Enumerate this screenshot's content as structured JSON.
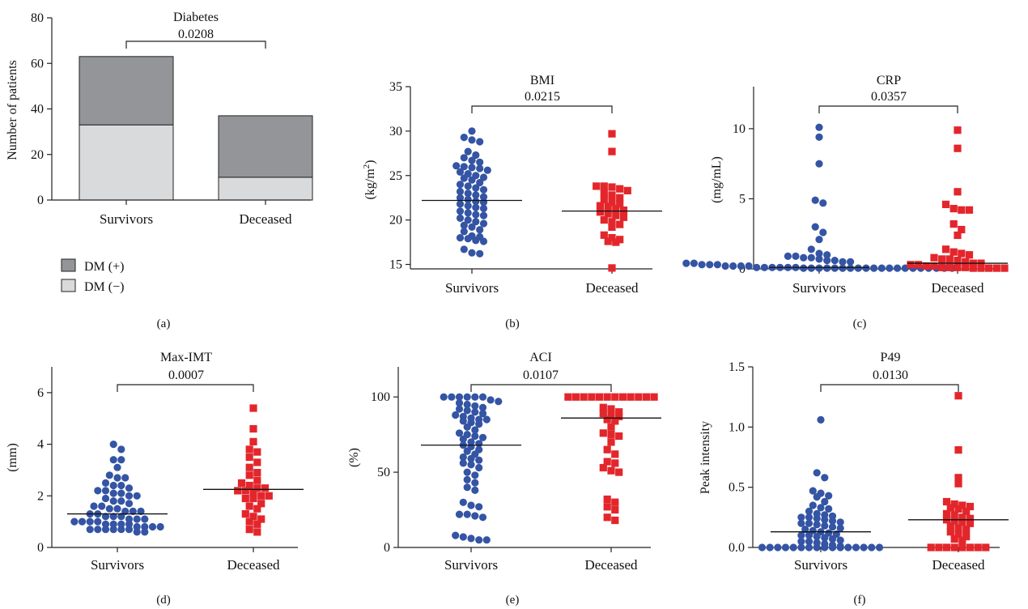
{
  "figure": {
    "colors": {
      "axis": "#222222",
      "survivors": "#3454a4",
      "deceased": "#e3262b",
      "dm_pos": "#939598",
      "dm_neg": "#d9dadb"
    }
  },
  "chart_data": [
    {
      "panel": "(a)",
      "type": "bar",
      "stacked": true,
      "title": "Diabetes",
      "pvalue": "0.0208",
      "ylabel": "Number of patients",
      "categories": [
        "Survivors",
        "Deceased"
      ],
      "series": [
        {
          "name": "DM (−)",
          "values": [
            33,
            10
          ],
          "color": "#d9dadb"
        },
        {
          "name": "DM (+)",
          "values": [
            30,
            27
          ],
          "color": "#939598"
        }
      ],
      "legend": [
        "DM (+)",
        "DM (−)"
      ],
      "ylim": [
        0,
        80
      ],
      "yticks": [
        0,
        20,
        40,
        60,
        80
      ],
      "legend_position": "bottom-left"
    },
    {
      "panel": "(b)",
      "type": "scatter",
      "title": "BMI",
      "pvalue": "0.0215",
      "ylabel": "(kg/m²)",
      "ylabel_main": "(kg/m",
      "ylabel_sup": "2",
      "ylabel_end": ")",
      "categories": [
        "Survivors",
        "Deceased"
      ],
      "ylim": [
        14.5,
        35
      ],
      "yticks": [
        15,
        20,
        25,
        30,
        35
      ],
      "medians": [
        22.2,
        21.0
      ],
      "series": [
        {
          "name": "Survivors",
          "values": [
            30.0,
            29.3,
            29.0,
            28.8,
            27.7,
            27.3,
            27.0,
            26.7,
            26.5,
            26.1,
            26.0,
            25.9,
            25.8,
            25.6,
            25.4,
            25.2,
            25.0,
            24.8,
            24.7,
            24.5,
            24.2,
            24.0,
            23.8,
            23.6,
            23.4,
            23.2,
            23.0,
            22.8,
            22.6,
            22.5,
            22.3,
            22.1,
            22.0,
            21.8,
            21.6,
            21.4,
            21.3,
            21.0,
            20.8,
            20.6,
            20.5,
            20.2,
            20.0,
            19.8,
            19.6,
            19.4,
            19.2,
            18.9,
            18.7,
            18.2,
            18.1,
            18.0,
            17.9,
            17.7,
            17.6,
            16.7,
            16.3,
            16.2
          ]
        },
        {
          "name": "Deceased",
          "values": [
            29.7,
            27.7,
            23.8,
            23.8,
            23.7,
            23.5,
            23.3,
            23.0,
            22.8,
            22.5,
            22.3,
            22.0,
            21.8,
            21.6,
            21.5,
            21.3,
            21.1,
            20.9,
            20.7,
            20.5,
            20.3,
            20.0,
            19.8,
            19.5,
            19.2,
            18.3,
            18.0,
            17.8,
            17.6,
            17.5,
            14.6
          ]
        }
      ]
    },
    {
      "panel": "(c)",
      "type": "scatter",
      "title": "CRP",
      "pvalue": "0.0357",
      "ylabel": "(mg/mL)",
      "categories": [
        "Survivors",
        "Deceased"
      ],
      "ylim": [
        0,
        13
      ],
      "yticks": [
        0,
        5,
        10
      ],
      "medians": [
        0.1,
        0.4
      ],
      "series": [
        {
          "name": "Survivors",
          "values": [
            10.1,
            9.4,
            7.5,
            4.9,
            4.7,
            3.0,
            2.6,
            2.1,
            1.4,
            1.1,
            1.0,
            0.9,
            0.9,
            0.8,
            0.8,
            0.7,
            0.6,
            0.6,
            0.5,
            0.5,
            0.4,
            0.4,
            0.3,
            0.3,
            0.3,
            0.2,
            0.2,
            0.2,
            0.2,
            0.1,
            0.1,
            0.1,
            0.1,
            0.1,
            0.1,
            0.05,
            0.05,
            0.05,
            0.05,
            0.05,
            0.05,
            0.05,
            0.05,
            0.05,
            0.05,
            0.05,
            0.05,
            0.05,
            0.05,
            0.05,
            0.05,
            0.05,
            0.05,
            0.05,
            0.05
          ]
        },
        {
          "name": "Deceased",
          "values": [
            9.9,
            8.6,
            5.5,
            4.6,
            4.3,
            4.2,
            4.2,
            3.2,
            2.8,
            2.4,
            1.4,
            1.2,
            1.1,
            1.0,
            0.8,
            0.7,
            0.7,
            0.6,
            0.5,
            0.4,
            0.4,
            0.3,
            0.3,
            0.2,
            0.2,
            0.1,
            0.1,
            0.1,
            0.1,
            0.05,
            0.05,
            0.05,
            0.05,
            0.05
          ]
        }
      ]
    },
    {
      "panel": "(d)",
      "type": "scatter",
      "title": "Max-IMT",
      "pvalue": "0.0007",
      "ylabel": "(mm)",
      "categories": [
        "Survivors",
        "Deceased"
      ],
      "ylim": [
        0,
        7
      ],
      "yticks": [
        0,
        2,
        4,
        6
      ],
      "medians": [
        1.3,
        2.25
      ],
      "series": [
        {
          "name": "Survivors",
          "values": [
            4.0,
            3.8,
            3.4,
            3.4,
            3.1,
            2.8,
            2.7,
            2.7,
            2.5,
            2.4,
            2.4,
            2.3,
            2.2,
            2.2,
            2.1,
            2.1,
            2.0,
            2.0,
            1.9,
            1.8,
            1.8,
            1.7,
            1.6,
            1.6,
            1.5,
            1.5,
            1.4,
            1.4,
            1.4,
            1.3,
            1.3,
            1.2,
            1.2,
            1.2,
            1.1,
            1.1,
            1.1,
            1.0,
            1.0,
            1.0,
            1.0,
            0.9,
            0.9,
            0.9,
            0.9,
            0.8,
            0.8,
            0.8,
            0.8,
            0.7,
            0.7,
            0.7,
            0.7,
            0.7,
            0.7,
            0.6,
            0.6
          ]
        },
        {
          "name": "Deceased",
          "values": [
            5.4,
            4.6,
            4.1,
            3.8,
            3.7,
            3.5,
            3.3,
            3.1,
            2.9,
            2.8,
            2.6,
            2.5,
            2.4,
            2.3,
            2.3,
            2.2,
            2.2,
            2.1,
            2.0,
            2.0,
            1.9,
            1.9,
            1.7,
            1.6,
            1.5,
            1.3,
            1.2,
            1.1,
            1.0,
            0.9,
            0.7,
            0.6
          ]
        }
      ]
    },
    {
      "panel": "(e)",
      "type": "scatter",
      "title": "ACI",
      "pvalue": "0.0107",
      "ylabel": "(%)",
      "categories": [
        "Survivors",
        "Deceased"
      ],
      "ylim": [
        0,
        120
      ],
      "yticks": [
        0,
        50,
        100
      ],
      "medians": [
        68,
        86
      ],
      "series": [
        {
          "name": "Survivors",
          "values": [
            100,
            100,
            100,
            100,
            100,
            100,
            98,
            97,
            96,
            95,
            94,
            93,
            92,
            91,
            90,
            89,
            88,
            87,
            86,
            85,
            85,
            84,
            83,
            82,
            80,
            78,
            76,
            75,
            74,
            73,
            72,
            70,
            69,
            68,
            67,
            65,
            64,
            62,
            60,
            59,
            58,
            56,
            55,
            53,
            50,
            48,
            45,
            43,
            40,
            38,
            30,
            28,
            27,
            22,
            22,
            21,
            20,
            8,
            7,
            6,
            5,
            5
          ]
        },
        {
          "name": "Deceased",
          "values": [
            100,
            100,
            100,
            100,
            100,
            100,
            100,
            100,
            100,
            100,
            100,
            100,
            93,
            92,
            90,
            89,
            88,
            87,
            85,
            84,
            80,
            76,
            75,
            74,
            70,
            65,
            62,
            57,
            56,
            53,
            51,
            50,
            32,
            30,
            27,
            25,
            20,
            18
          ]
        }
      ]
    },
    {
      "panel": "(f)",
      "type": "scatter",
      "title": "P49",
      "pvalue": "0.0130",
      "ylabel": "Peak intensity",
      "categories": [
        "Survivors",
        "Deceased"
      ],
      "ylim": [
        0,
        1.5
      ],
      "yticks": [
        0.0,
        0.5,
        1.0,
        1.5
      ],
      "ytick_labels": [
        "0.0",
        "0.5",
        "1.0",
        "1.5"
      ],
      "medians": [
        0.13,
        0.23
      ],
      "series": [
        {
          "name": "Survivors",
          "values": [
            1.06,
            0.62,
            0.58,
            0.47,
            0.45,
            0.43,
            0.42,
            0.38,
            0.35,
            0.33,
            0.32,
            0.3,
            0.28,
            0.27,
            0.26,
            0.25,
            0.25,
            0.24,
            0.23,
            0.22,
            0.21,
            0.2,
            0.2,
            0.19,
            0.18,
            0.17,
            0.16,
            0.15,
            0.14,
            0.13,
            0.12,
            0.11,
            0.1,
            0.1,
            0.09,
            0.08,
            0.07,
            0.06,
            0.05,
            0.05,
            0.04,
            0.03,
            0.02,
            0.01,
            0.0,
            0.0,
            0.0,
            0.0,
            0.0,
            0.0,
            0.0,
            0.0,
            0.0,
            0.0,
            0.0,
            0.0,
            0.0,
            0.0,
            0.0,
            0.0
          ]
        },
        {
          "name": "Deceased",
          "values": [
            1.26,
            0.81,
            0.58,
            0.53,
            0.38,
            0.36,
            0.35,
            0.34,
            0.33,
            0.32,
            0.3,
            0.28,
            0.27,
            0.25,
            0.24,
            0.23,
            0.22,
            0.21,
            0.2,
            0.18,
            0.16,
            0.15,
            0.13,
            0.11,
            0.09,
            0.07,
            0.06,
            0.0,
            0.0,
            0.0,
            0.0,
            0.0,
            0.0,
            0.0,
            0.0
          ]
        }
      ]
    }
  ]
}
